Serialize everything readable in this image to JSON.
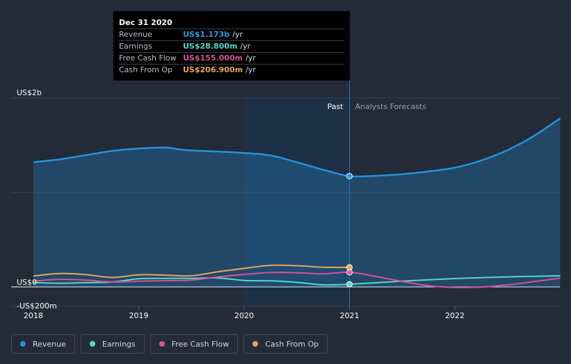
{
  "tooltip": {
    "date": "Dec 31 2020",
    "rows": [
      {
        "label": "Revenue",
        "value": "US$1.173b",
        "unit": "/yr"
      },
      {
        "label": "Earnings",
        "value": "US$28.800m",
        "unit": "/yr"
      },
      {
        "label": "Free Cash Flow",
        "value": "US$155.000m",
        "unit": "/yr"
      },
      {
        "label": "Cash From Op",
        "value": "US$206.900m",
        "unit": "/yr"
      }
    ]
  },
  "chart_data": {
    "type": "line",
    "y_tick_labels": [
      "US$2b",
      "US$0",
      "-US$200m"
    ],
    "x_tick_labels": [
      "2018",
      "2019",
      "2020",
      "2021",
      "2022"
    ],
    "ylim": [
      -200,
      2000
    ],
    "region_labels": {
      "past": "Past",
      "forecast": "Analysts Forecasts"
    },
    "highlight_x": 2021.0,
    "series": [
      {
        "name": "Revenue",
        "color": "#2394df",
        "area": true,
        "x": [
          2018.0,
          2018.25,
          2018.5,
          2018.75,
          2019.0,
          2019.25,
          2019.45,
          2019.75,
          2020.0,
          2020.25,
          2020.5,
          2020.75,
          2021.0,
          2021.25,
          2021.5,
          2021.75,
          2022.0,
          2022.25,
          2022.5,
          2022.75,
          2023.0
        ],
        "values": [
          1320,
          1350,
          1395,
          1440,
          1465,
          1475,
          1448,
          1432,
          1418,
          1392,
          1320,
          1240,
          1173,
          1176,
          1192,
          1222,
          1262,
          1338,
          1448,
          1598,
          1785
        ]
      },
      {
        "name": "Earnings",
        "color": "#58d9c9",
        "x": [
          2018.0,
          2018.25,
          2018.5,
          2018.75,
          2019.0,
          2019.25,
          2019.5,
          2019.75,
          2020.0,
          2020.25,
          2020.5,
          2020.75,
          2021.0,
          2021.5,
          2022.0,
          2022.5,
          2023.0
        ],
        "values": [
          45,
          38,
          45,
          52,
          86,
          90,
          90,
          95,
          68,
          64,
          48,
          22,
          28,
          60,
          88,
          106,
          118
        ]
      },
      {
        "name": "Free Cash Flow",
        "color": "#d9539a",
        "x": [
          2018.0,
          2018.25,
          2018.5,
          2018.75,
          2019.0,
          2019.25,
          2019.5,
          2019.75,
          2020.0,
          2020.25,
          2020.5,
          2020.75,
          2021.0,
          2021.25,
          2021.5,
          2021.75,
          2022.0,
          2022.25,
          2022.5,
          2022.75,
          2023.0
        ],
        "values": [
          62,
          80,
          72,
          52,
          60,
          66,
          72,
          105,
          132,
          152,
          150,
          138,
          155,
          110,
          58,
          12,
          -5,
          -2,
          22,
          56,
          92
        ]
      },
      {
        "name": "Cash From Op",
        "color": "#e8a85a",
        "x": [
          2018.0,
          2018.25,
          2018.5,
          2018.75,
          2019.0,
          2019.25,
          2019.5,
          2019.75,
          2020.0,
          2020.25,
          2020.5,
          2020.75,
          2021.0
        ],
        "values": [
          115,
          142,
          130,
          100,
          128,
          124,
          118,
          160,
          196,
          228,
          224,
          208,
          206.9
        ]
      }
    ]
  },
  "legend": {
    "items": [
      {
        "label": "Revenue",
        "color": "#2394df"
      },
      {
        "label": "Earnings",
        "color": "#58d9c9"
      },
      {
        "label": "Free Cash Flow",
        "color": "#d9539a"
      },
      {
        "label": "Cash From Op",
        "color": "#e8a85a"
      }
    ]
  }
}
